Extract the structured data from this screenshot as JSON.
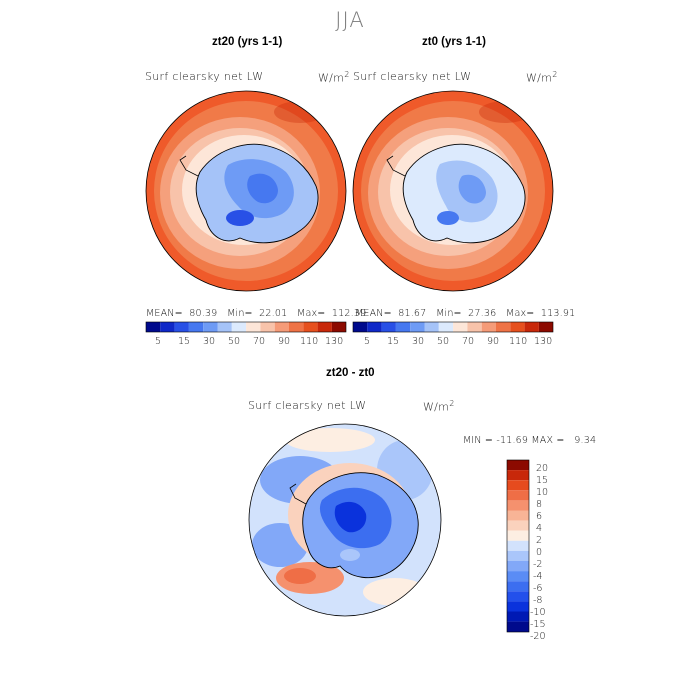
{
  "figure": {
    "season": "JJA",
    "colors": {
      "abs_scale": [
        "#000a8c",
        "#0f28c8",
        "#2850e6",
        "#4678f0",
        "#6e9bf5",
        "#a5c3f8",
        "#dceafd",
        "#fde6d8",
        "#f8c3aa",
        "#f59b78",
        "#ef7346",
        "#e6501e",
        "#c8280a",
        "#8c0a00"
      ],
      "diff_scale": [
        "#000a8c",
        "#0019b4",
        "#0a32dc",
        "#2350eb",
        "#3c6ef0",
        "#5a8cf5",
        "#82a8f8",
        "#aac6fa",
        "#d2e2fc",
        "#fdeee2",
        "#fad2bd",
        "#f8b496",
        "#f5916e",
        "#ef6e46",
        "#e64b1e",
        "#c8280a",
        "#8c0a00"
      ],
      "land_outline": "#000000"
    }
  },
  "panels": [
    {
      "title": "zt20 (yrs 1-1)",
      "variable": "Surf clearsky net LW",
      "units": "W/m",
      "units_exp": "2",
      "stats": {
        "mean_label": "MEAN=",
        "mean": "80.39",
        "min_label": "Min=",
        "min": "22.01",
        "max_label": "Max=",
        "max": "112.39"
      },
      "colorbar_ticks": [
        "5",
        "15",
        "30",
        "50",
        "70",
        "90",
        "110",
        "130"
      ]
    },
    {
      "title": "zt0 (yrs 1-1)",
      "variable": "Surf clearsky net LW",
      "units": "W/m",
      "units_exp": "2",
      "stats": {
        "mean_label": "MEAN=",
        "mean": "81.67",
        "min_label": "Min=",
        "min": "27.36",
        "max_label": "Max=",
        "max": "113.91"
      },
      "colorbar_ticks": [
        "5",
        "15",
        "30",
        "50",
        "70",
        "90",
        "110",
        "130"
      ]
    },
    {
      "title": "zt20 - zt0",
      "variable": "Surf clearsky net LW",
      "units": "W/m",
      "units_exp": "2",
      "stats": {
        "min_label": "MIN =",
        "min": "-11.69",
        "max_label": "MAX =",
        "max": "9.34"
      },
      "colorbar_ticks": [
        "20",
        "15",
        "10",
        "8",
        "6",
        "4",
        "2",
        "0",
        "-2",
        "-4",
        "-6",
        "-8",
        "-10",
        "-15",
        "-20"
      ]
    }
  ]
}
